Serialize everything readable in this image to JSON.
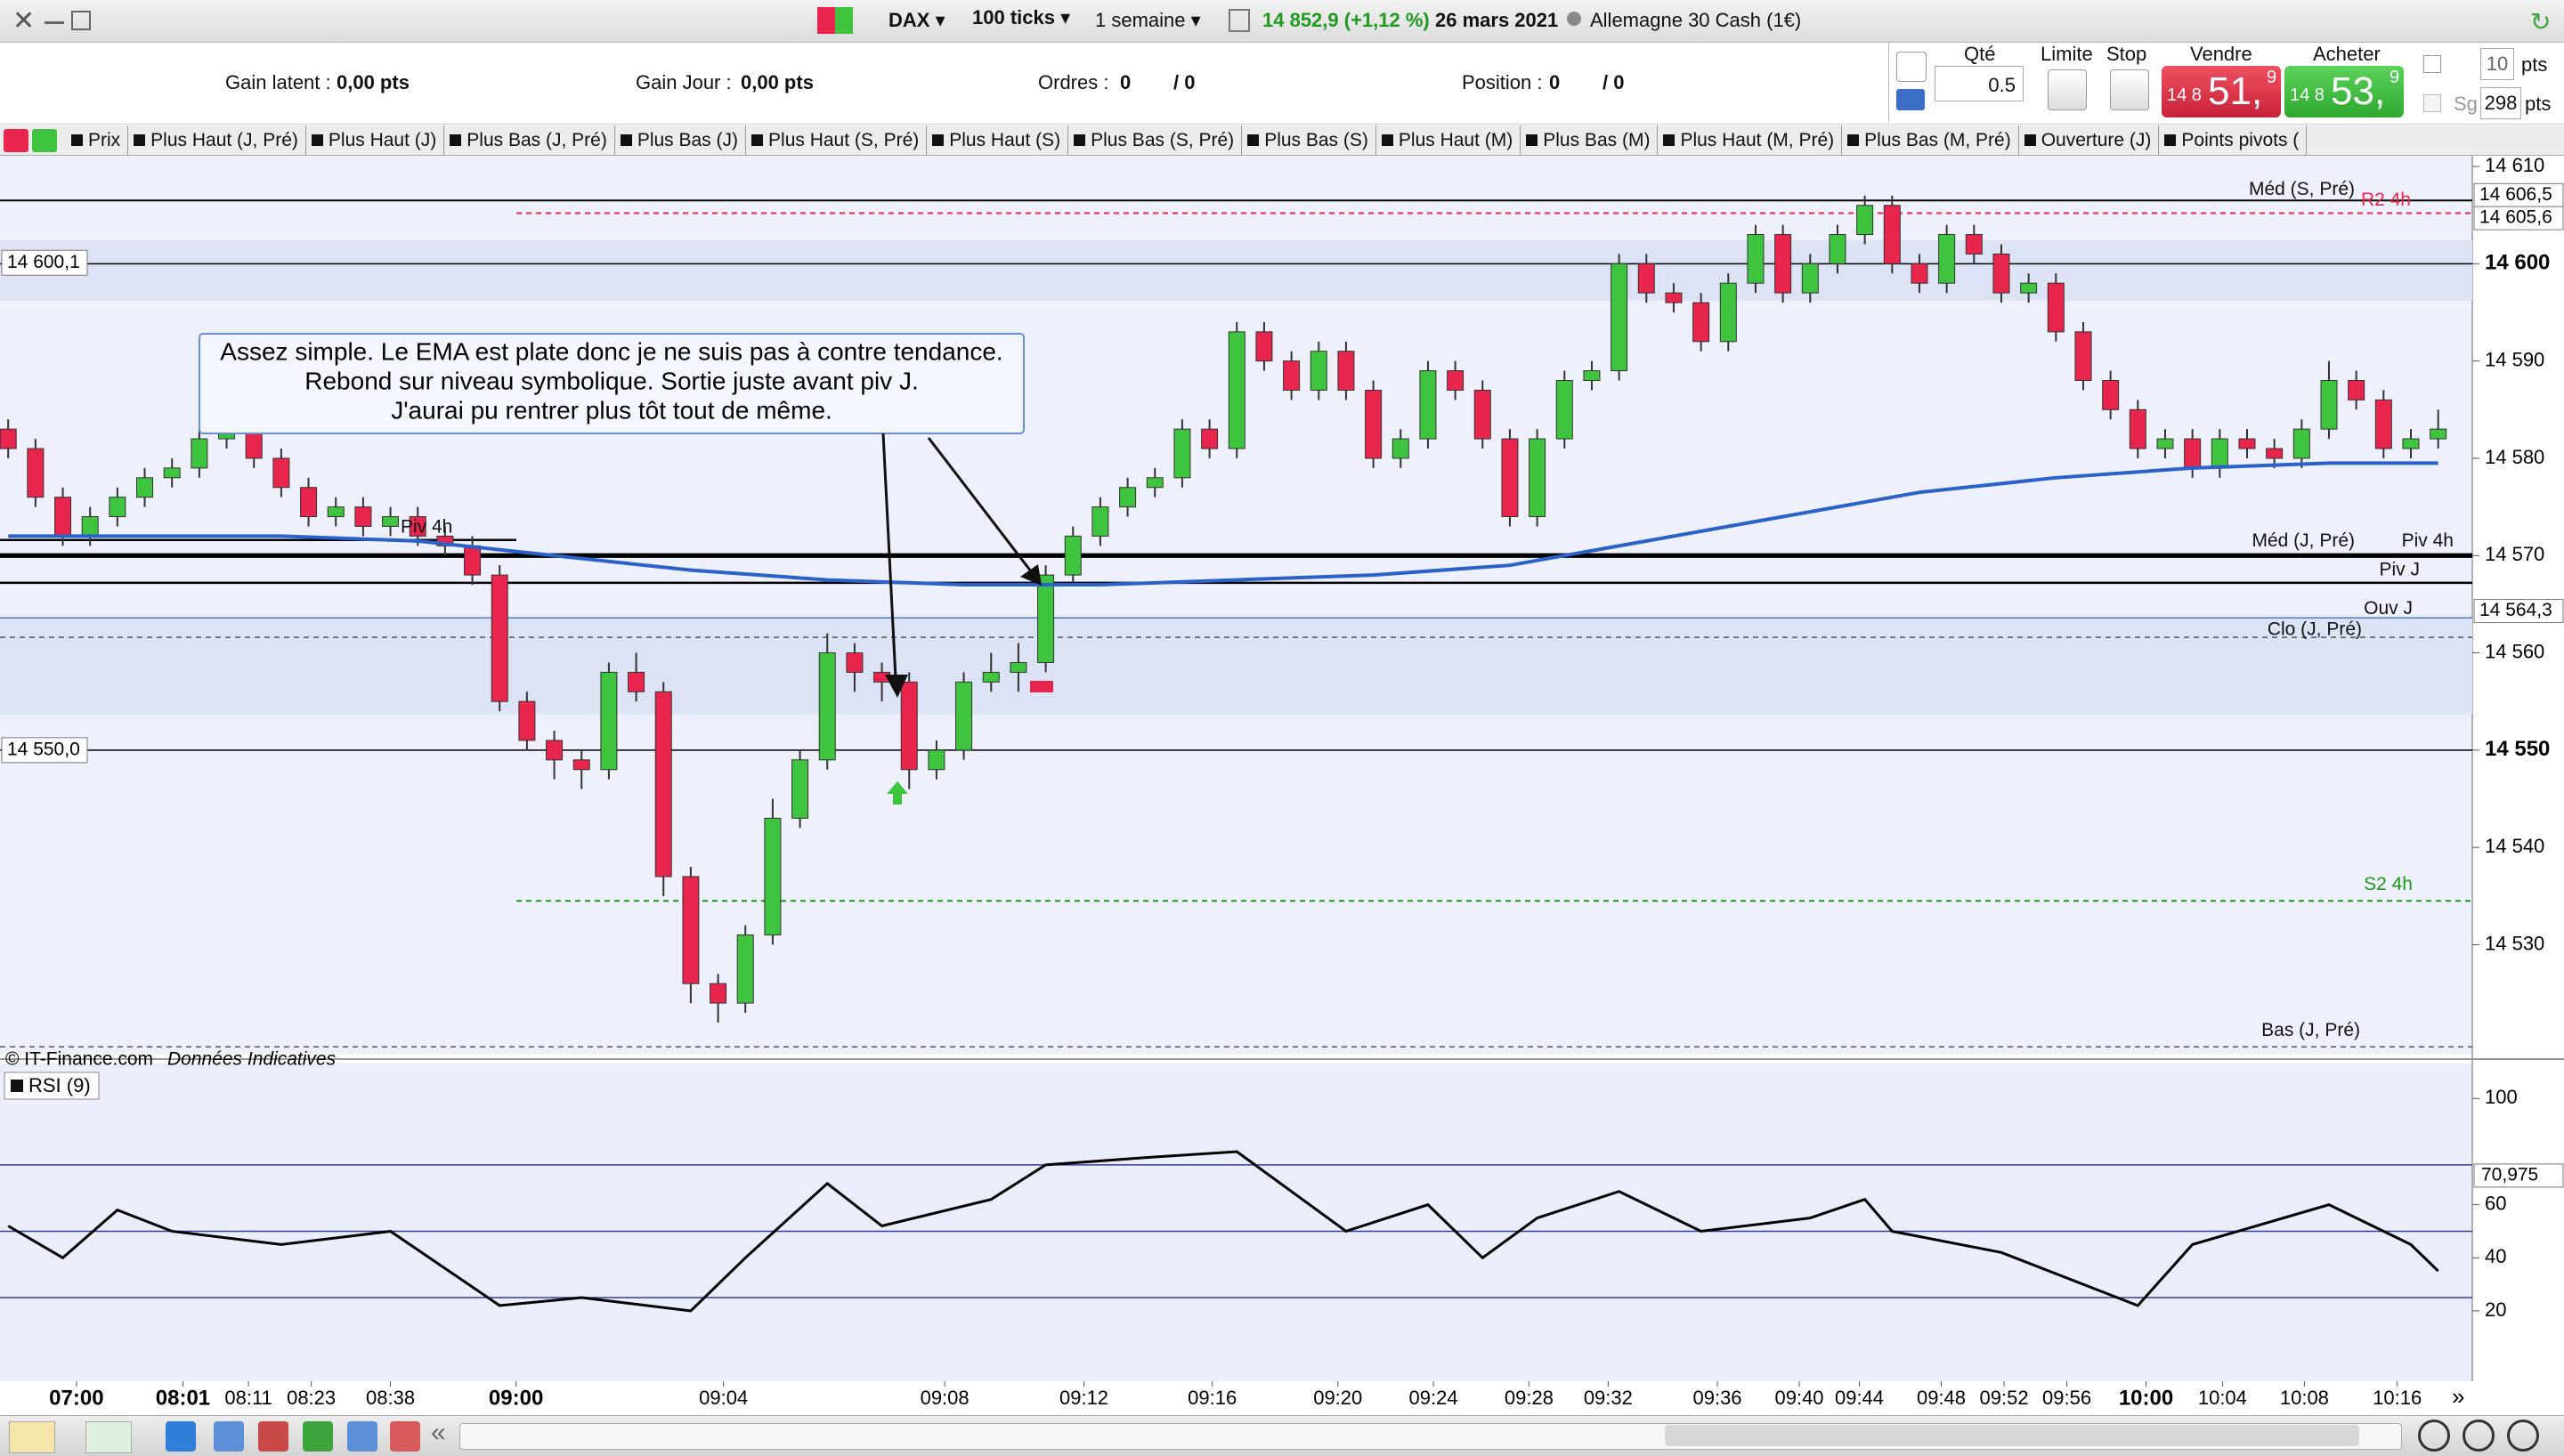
{
  "toolbar": {
    "symbol": "DAX",
    "period": "100 ticks",
    "range": "1 semaine",
    "quote": "14 852,9 (+1,12 %)",
    "date": "26 mars 2021",
    "instrument": "Allemagne 30 Cash (1€)"
  },
  "account": {
    "gain_latent_label": "Gain latent :",
    "gain_latent": "0,00 pts",
    "gain_jour_label": "Gain Jour :",
    "gain_jour": "0,00 pts",
    "orders_label": "Ordres :",
    "orders": "0",
    "orders_pending": "/ 0",
    "position_label": "Position :",
    "position": "0",
    "position_pending": "/ 0"
  },
  "order_panel": {
    "qty_label": "Qté",
    "qty": "0.5",
    "limit_label": "Limite",
    "stop_label": "Stop",
    "sell_label": "Vendre",
    "sell_prefix": "14 8",
    "sell_big": "51,",
    "sell_small": "9",
    "buy_label": "Acheter",
    "buy_prefix": "14 8",
    "buy_big": "53,",
    "buy_small": "9",
    "stop_distance": "10",
    "stop_unit": "pts",
    "guaranteed_label": "Sg",
    "guaranteed_distance": "298",
    "guaranteed_unit": "pts"
  },
  "tabs": [
    "Prix",
    "Plus Haut (J, Pré)",
    "Plus Haut (J)",
    "Plus Bas (J, Pré)",
    "Plus Bas (J)",
    "Plus Haut (S, Pré)",
    "Plus Haut (S)",
    "Plus Bas (S, Pré)",
    "Plus Bas (S)",
    "Plus Haut (M)",
    "Plus Bas (M)",
    "Plus Haut (M, Pré)",
    "Plus Bas (M, Pré)",
    "Ouverture (J)",
    "Points pivots ("
  ],
  "footer": {
    "copyright": "© IT-Finance.com",
    "disclaimer": "Données Indicatives"
  },
  "annotation": [
    "Assez simple. Le EMA est plate donc je ne suis pas à contre tendance.",
    "Rebond sur niveau symbolique. Sortie juste avant piv J.",
    "J'aurai pu rentrer plus tôt tout de même."
  ],
  "chart_data": [
    {
      "type": "candlestick",
      "up_color": "#3ec43e",
      "down_color": "#e8254d",
      "xlim": [
        -0.3,
        90.25
      ],
      "ylim": [
        14518.7,
        14611.1
      ],
      "yticks": [
        {
          "value": 14610,
          "label": "14 610"
        },
        {
          "value": 14600,
          "label": "14 600",
          "bold": true
        },
        {
          "value": 14590,
          "label": "14 590"
        },
        {
          "value": 14580,
          "label": "14 580"
        },
        {
          "value": 14570,
          "label": "14 570"
        },
        {
          "value": 14560,
          "label": "14 560"
        },
        {
          "value": 14550,
          "label": "14 550",
          "bold": true
        },
        {
          "value": 14540,
          "label": "14 540"
        },
        {
          "value": 14530,
          "label": "14 530"
        }
      ],
      "open": [
        14583,
        14581,
        14576,
        14572,
        14574,
        14576,
        14578,
        14579,
        14582,
        14585,
        14580,
        14577,
        14574,
        14575,
        14573,
        14574,
        14572,
        14571,
        14568,
        14555,
        14551,
        14549,
        14548,
        14558,
        14556,
        14537,
        14526,
        14524,
        14531,
        14543,
        14549,
        14560,
        14558,
        14557,
        14548,
        14550,
        14557,
        14558,
        14559,
        14568,
        14572,
        14575,
        14577,
        14578,
        14583,
        14581,
        14593,
        14590,
        14587,
        14591,
        14587,
        14580,
        14582,
        14589,
        14587,
        14582,
        14574,
        14582,
        14588,
        14589,
        14600,
        14597,
        14596,
        14592,
        14598,
        14603,
        14597,
        14600,
        14603,
        14606,
        14600,
        14598,
        14603,
        14601,
        14597,
        14598,
        14593,
        14588,
        14585,
        14581,
        14582,
        14579,
        14582,
        14581,
        14580,
        14583,
        14588,
        14586,
        14581,
        14582
      ],
      "high": [
        14584,
        14582,
        14577,
        14575,
        14577,
        14579,
        14580,
        14583,
        14587,
        14586,
        14581,
        14578,
        14576,
        14576,
        14575,
        14575,
        14573,
        14572,
        14569,
        14556,
        14552,
        14550,
        14559,
        14560,
        14557,
        14538,
        14527,
        14532,
        14545,
        14550,
        14562,
        14561,
        14559,
        14558,
        14551,
        14558,
        14560,
        14561,
        14569,
        14573,
        14576,
        14578,
        14579,
        14584,
        14584,
        14594,
        14594,
        14591,
        14592,
        14592,
        14588,
        14583,
        14590,
        14590,
        14588,
        14583,
        14583,
        14589,
        14590,
        14601,
        14601,
        14598,
        14597,
        14599,
        14604,
        14604,
        14601,
        14604,
        14607,
        14607,
        14601,
        14604,
        14604,
        14602,
        14599,
        14599,
        14594,
        14589,
        14586,
        14583,
        14583,
        14583,
        14583,
        14582,
        14584,
        14590,
        14589,
        14587,
        14583,
        14585
      ],
      "low": [
        14580,
        14575,
        14571,
        14571,
        14573,
        14575,
        14577,
        14578,
        14581,
        14579,
        14576,
        14573,
        14573,
        14572,
        14572,
        14571,
        14570,
        14567,
        14554,
        14550,
        14547,
        14546,
        14547,
        14555,
        14535,
        14524,
        14522,
        14523,
        14530,
        14542,
        14548,
        14556,
        14555,
        14546,
        14547,
        14549,
        14556,
        14556,
        14558,
        14567,
        14571,
        14574,
        14576,
        14577,
        14580,
        14580,
        14589,
        14586,
        14586,
        14586,
        14579,
        14579,
        14581,
        14586,
        14581,
        14573,
        14573,
        14581,
        14587,
        14588,
        14596,
        14595,
        14591,
        14591,
        14597,
        14596,
        14596,
        14599,
        14602,
        14599,
        14597,
        14597,
        14600,
        14596,
        14596,
        14592,
        14587,
        14584,
        14580,
        14580,
        14578,
        14578,
        14580,
        14579,
        14579,
        14582,
        14585,
        14580,
        14580,
        14581
      ],
      "close": [
        14581,
        14576,
        14572,
        14574,
        14576,
        14578,
        14579,
        14582,
        14585,
        14580,
        14577,
        14574,
        14575,
        14573,
        14574,
        14572,
        14571,
        14568,
        14555,
        14551,
        14549,
        14548,
        14558,
        14556,
        14537,
        14526,
        14524,
        14531,
        14543,
        14549,
        14560,
        14558,
        14557,
        14548,
        14550,
        14557,
        14558,
        14559,
        14568,
        14572,
        14575,
        14577,
        14578,
        14583,
        14581,
        14593,
        14590,
        14587,
        14591,
        14587,
        14580,
        14582,
        14589,
        14587,
        14582,
        14574,
        14582,
        14588,
        14589,
        14600,
        14597,
        14596,
        14592,
        14598,
        14603,
        14597,
        14600,
        14603,
        14606,
        14600,
        14598,
        14603,
        14601,
        14597,
        14598,
        14593,
        14588,
        14585,
        14581,
        14582,
        14579,
        14582,
        14581,
        14580,
        14583,
        14588,
        14586,
        14581,
        14582,
        14583
      ],
      "ema": {
        "color": "#2a62c9",
        "x": [
          0,
          5,
          10,
          15,
          20,
          25,
          30,
          35,
          40,
          45,
          50,
          55,
          60,
          65,
          70,
          75,
          80,
          85,
          89
        ],
        "values": [
          14572,
          14572,
          14572,
          14571.5,
          14570,
          14568.5,
          14567.5,
          14567,
          14567,
          14567.5,
          14568,
          14569,
          14571.5,
          14574,
          14576.5,
          14578,
          14579,
          14579.5,
          14579.5
        ]
      },
      "bands": [
        [
          14596.2,
          14602.4
        ],
        [
          14553.7,
          14563.6
        ]
      ],
      "levels": [
        {
          "label": "Méd (S, Pré)",
          "value": 14606.5,
          "color": "#000000",
          "width": 2
        },
        {
          "label": "R2 4h",
          "value": 14605.2,
          "color": "#e8254d",
          "dash": true,
          "width": 2
        },
        {
          "value": 14600,
          "color": "#000000",
          "width": 1.5
        },
        {
          "label": "Méd (J, Pré)",
          "value": 14570,
          "color": "#000000",
          "width": 5
        },
        {
          "label": "Piv 4h",
          "value": 14570,
          "color": "#000000",
          "width": 5
        },
        {
          "label": "Piv J",
          "value": 14567.2,
          "color": "#000000",
          "width": 2.5
        },
        {
          "label": "Ouv J",
          "value": 14563.6,
          "color": "#4a7bd8",
          "width": 1.5
        },
        {
          "label": "Clo (J, Pré)",
          "value": 14561.6,
          "color": "#555555",
          "dash": true,
          "width": 1.5
        },
        {
          "value": 14550,
          "color": "#000000",
          "width": 1.5
        },
        {
          "label": "S2 4h",
          "value": 14534.5,
          "color": "#1a9a1a",
          "dash": true,
          "width": 2
        },
        {
          "label": "Bas (J, Pré)",
          "value": 14519.5,
          "color": "#555555",
          "dash": true,
          "width": 1.5
        },
        {
          "label": "Piv 4h",
          "value": 14571.6,
          "color": "#000000",
          "width": 2.5
        }
      ],
      "axis_tags": [
        {
          "value": 14606.5,
          "label": "14 606,5"
        },
        {
          "value": 14605.6,
          "label": "14 605,6"
        },
        {
          "value": 14564.3,
          "label": "14 564,3"
        }
      ],
      "left_tags": [
        {
          "value": 14600.1,
          "label": "14 600,1"
        },
        {
          "value": 14550,
          "label": "14 550,0"
        }
      ]
    },
    {
      "type": "line",
      "title": "RSI (9)",
      "color": "#000000",
      "xlim": [
        -0.3,
        90.25
      ],
      "ylim": [
        -6.5,
        110.5
      ],
      "x": [
        0,
        2,
        4,
        6,
        10,
        14,
        18,
        21,
        25,
        27,
        30,
        32,
        36,
        38,
        42,
        45,
        49,
        52,
        54,
        56,
        59,
        62,
        66,
        68,
        69,
        73,
        78,
        80,
        85,
        88,
        89
      ],
      "values": [
        52,
        40,
        58,
        50,
        45,
        50,
        22,
        25,
        20,
        40,
        68,
        52,
        62,
        75,
        78,
        80,
        50,
        60,
        40,
        55,
        65,
        50,
        55,
        62,
        50,
        42,
        22,
        45,
        60,
        45,
        35
      ],
      "yticks": [
        20,
        40,
        60,
        100
      ],
      "levels": [
        75,
        50,
        25
      ],
      "tag": {
        "value": 70.975,
        "label": "70,975"
      },
      "xticks": [
        {
          "value": 2.5,
          "label": "07:00",
          "bold": true
        },
        {
          "value": 6.4,
          "label": "08:01",
          "bold": true
        },
        {
          "value": 8.8,
          "label": "08:11"
        },
        {
          "value": 11.1,
          "label": "08:23"
        },
        {
          "value": 14,
          "label": "08:38"
        },
        {
          "value": 18.6,
          "label": "09:00",
          "bold": true
        },
        {
          "value": 26.2,
          "label": "09:04"
        },
        {
          "value": 34.3,
          "label": "09:08"
        },
        {
          "value": 39.4,
          "label": "09:12"
        },
        {
          "value": 44.1,
          "label": "09:16"
        },
        {
          "value": 48.7,
          "label": "09:20"
        },
        {
          "value": 52.2,
          "label": "09:24"
        },
        {
          "value": 55.7,
          "label": "09:28"
        },
        {
          "value": 58.6,
          "label": "09:32"
        },
        {
          "value": 62.6,
          "label": "09:36"
        },
        {
          "value": 65.6,
          "label": "09:40"
        },
        {
          "value": 67.8,
          "label": "09:44"
        },
        {
          "value": 70.8,
          "label": "09:48"
        },
        {
          "value": 73.1,
          "label": "09:52"
        },
        {
          "value": 75.4,
          "label": "09:56"
        },
        {
          "value": 78.3,
          "label": "10:00",
          "bold": true
        },
        {
          "value": 81.1,
          "label": "10:04"
        },
        {
          "value": 84.1,
          "label": "10:08"
        },
        {
          "value": 87.5,
          "label": "10:16"
        }
      ]
    }
  ]
}
